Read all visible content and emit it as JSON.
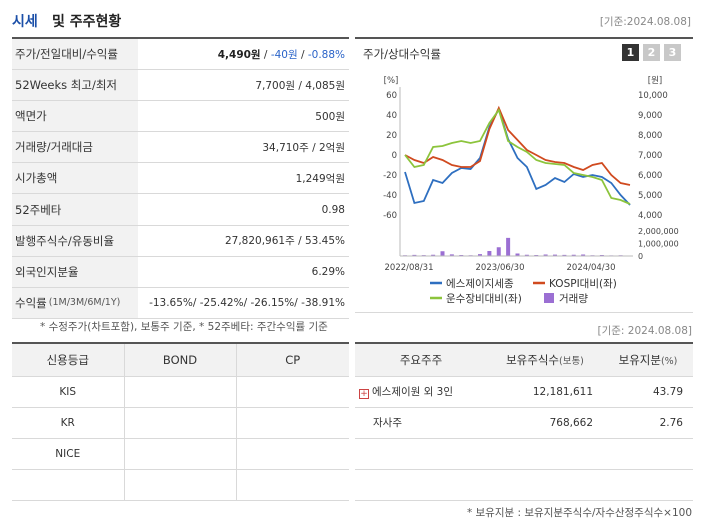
{
  "header": {
    "title_a": "시세",
    "title_b": "및 주주현황",
    "base_date": "[기준:2024.08.08]"
  },
  "price_table": [
    {
      "label": "주가/전일대비/수익률",
      "value_main": "4,490원",
      "value_sep1": " / ",
      "value_change": "-40원",
      "value_sep2": " / ",
      "value_pct": "-0.88%"
    },
    {
      "label": "52Weeks 최고/최저",
      "value": "7,700원 / 4,085원"
    },
    {
      "label": "액면가",
      "value": "500원"
    },
    {
      "label": "거래량/거래대금",
      "value": "34,710주 / 2억원"
    },
    {
      "label": "시가총액",
      "value": "1,249억원"
    },
    {
      "label": "52주베타",
      "value": "0.98"
    },
    {
      "label": "발행주식수/유동비율",
      "value": "27,820,961주 / 53.45%"
    },
    {
      "label": "외국인지분율",
      "value": "6.29%"
    },
    {
      "label": "수익률",
      "label_sub": "(1M/3M/6M/1Y)",
      "value": "-13.65%/ -25.42%/ -26.15%/ -38.91%"
    }
  ],
  "left_note": "* 수정주가(차트포함), 보통주 기준, * 52주베타: 주간수익률 기준",
  "chart_panel": {
    "title": "주가/상대수익률",
    "pages": [
      "1",
      "2",
      "3"
    ],
    "active_page": 0
  },
  "chart_data": {
    "type": "line",
    "left_axis_unit": "[%]",
    "right_axis_unit": "[원]",
    "left_ticks": [
      "60",
      "40",
      "20",
      "0",
      "-20",
      "-40",
      "-60"
    ],
    "right_ticks": [
      "10,000",
      "9,000",
      "8,000",
      "7,000",
      "6,000",
      "5,000",
      "4,000"
    ],
    "volume_ticks": [
      "2,000,000",
      "1,000,000",
      "0"
    ],
    "x_labels": [
      "2022/08/31",
      "2023/06/30",
      "2024/04/30"
    ],
    "ylim_left": [
      -60,
      60
    ],
    "ylim_volume": [
      0,
      2000000
    ],
    "series": [
      {
        "name": "에스제이지세종",
        "color": "#2e6fc0",
        "values": [
          -17,
          -48,
          -46,
          -25,
          -28,
          -18,
          -13,
          -14,
          -3,
          28,
          46,
          16,
          -3,
          -12,
          -34,
          -30,
          -23,
          -27,
          -19,
          -22,
          -20,
          -22,
          -28,
          -40,
          -50
        ]
      },
      {
        "name": "KOSPI대비(좌)",
        "color": "#d04a1f",
        "values": [
          0,
          -5,
          -8,
          -2,
          -5,
          -10,
          -12,
          -12,
          -6,
          26,
          47,
          25,
          15,
          5,
          0,
          -5,
          -7,
          -8,
          -12,
          -15,
          -10,
          -8,
          -20,
          -28,
          -30
        ]
      },
      {
        "name": "운수장비대비(좌)",
        "color": "#8cc43c",
        "values": [
          0,
          -12,
          -10,
          8,
          9,
          12,
          14,
          12,
          14,
          32,
          45,
          14,
          8,
          3,
          -5,
          -8,
          -9,
          -10,
          -18,
          -20,
          -22,
          -25,
          -43,
          -45,
          -49
        ]
      }
    ],
    "volume": {
      "name": "거래량",
      "color": "#9b6fd3",
      "values": [
        60000,
        90000,
        70000,
        100000,
        380000,
        130000,
        80000,
        60000,
        150000,
        400000,
        700000,
        1450000,
        200000,
        100000,
        80000,
        120000,
        110000,
        90000,
        100000,
        120000,
        60000,
        80000,
        50000,
        60000,
        40000
      ]
    }
  },
  "base_date2": "[기준: 2024.08.08]",
  "credit_table": {
    "headers": [
      "신용등급",
      "BOND",
      "CP"
    ],
    "rows": [
      "KIS",
      "KR",
      "NICE",
      ""
    ]
  },
  "holders_table": {
    "headers": [
      "주요주주",
      "보유주식수",
      "(보통)",
      "보유지분",
      "(%)"
    ],
    "rows": [
      {
        "name": "에스제이원 외 3인",
        "shares": "12,181,611",
        "pct": "43.79",
        "has_plus": true
      },
      {
        "name": "자사주",
        "shares": "768,662",
        "pct": "2.76",
        "has_plus": false
      },
      {
        "name": "",
        "shares": "",
        "pct": "",
        "has_plus": false
      },
      {
        "name": "",
        "shares": "",
        "pct": "",
        "has_plus": false
      }
    ]
  },
  "right_note": "* 보유지분 : 보유지분주식수/자수산정주식수×100"
}
